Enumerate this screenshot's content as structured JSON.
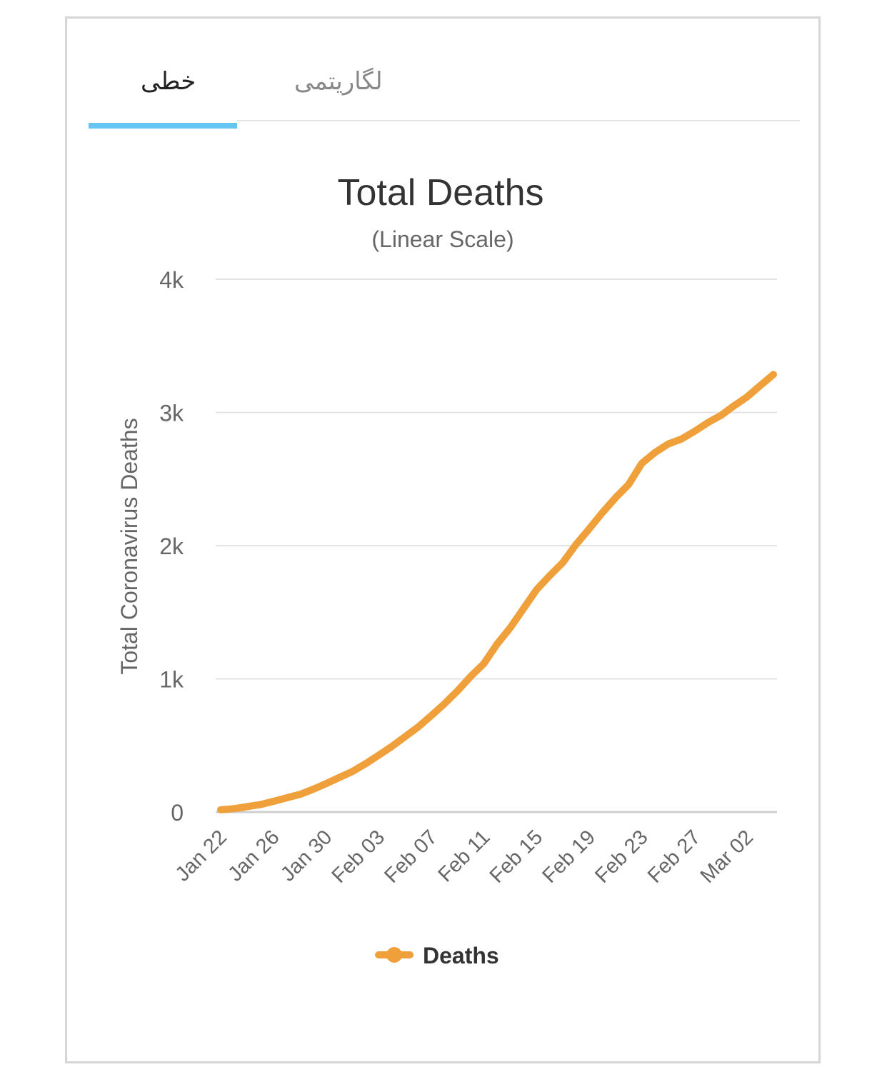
{
  "tabs": [
    {
      "label": "خطی",
      "active": true
    },
    {
      "label": "لگاریتمی",
      "active": false
    }
  ],
  "colors": {
    "accent": "#64c5f2",
    "series": "#f0a03a",
    "grid": "#e3e3e3",
    "text": "#333333",
    "muted": "#666666"
  },
  "chart_data": {
    "type": "line",
    "title": "Total Deaths",
    "subtitle": "(Linear Scale)",
    "ylabel": "Total Coronavirus Deaths",
    "xlabel": "",
    "ylim": [
      0,
      4000
    ],
    "yticks": [
      0,
      1000,
      2000,
      3000,
      4000
    ],
    "ytick_labels": [
      "0",
      "1k",
      "2k",
      "3k",
      "4k"
    ],
    "xtick_labels": [
      "Jan 22",
      "Jan 26",
      "Jan 30",
      "Feb 03",
      "Feb 07",
      "Feb 11",
      "Feb 15",
      "Feb 19",
      "Feb 23",
      "Feb 27",
      "Mar 02"
    ],
    "grid": true,
    "legend_position": "bottom",
    "x": [
      "Jan 22",
      "Jan 23",
      "Jan 24",
      "Jan 25",
      "Jan 26",
      "Jan 27",
      "Jan 28",
      "Jan 29",
      "Jan 30",
      "Jan 31",
      "Feb 01",
      "Feb 02",
      "Feb 03",
      "Feb 04",
      "Feb 05",
      "Feb 06",
      "Feb 07",
      "Feb 08",
      "Feb 09",
      "Feb 10",
      "Feb 11",
      "Feb 12",
      "Feb 13",
      "Feb 14",
      "Feb 15",
      "Feb 16",
      "Feb 17",
      "Feb 18",
      "Feb 19",
      "Feb 20",
      "Feb 21",
      "Feb 22",
      "Feb 23",
      "Feb 24",
      "Feb 25",
      "Feb 26",
      "Feb 27",
      "Feb 28",
      "Feb 29",
      "Mar 01",
      "Mar 02",
      "Mar 03",
      "Mar 04"
    ],
    "series": [
      {
        "name": "Deaths",
        "color": "#f0a03a",
        "values": [
          17,
          25,
          41,
          56,
          80,
          106,
          132,
          170,
          213,
          259,
          304,
          362,
          426,
          492,
          565,
          638,
          724,
          813,
          910,
          1018,
          1115,
          1261,
          1383,
          1526,
          1669,
          1775,
          1873,
          2009,
          2126,
          2247,
          2360,
          2460,
          2618,
          2699,
          2763,
          2800,
          2858,
          2923,
          2977,
          3050,
          3117,
          3202,
          3285
        ]
      }
    ]
  }
}
